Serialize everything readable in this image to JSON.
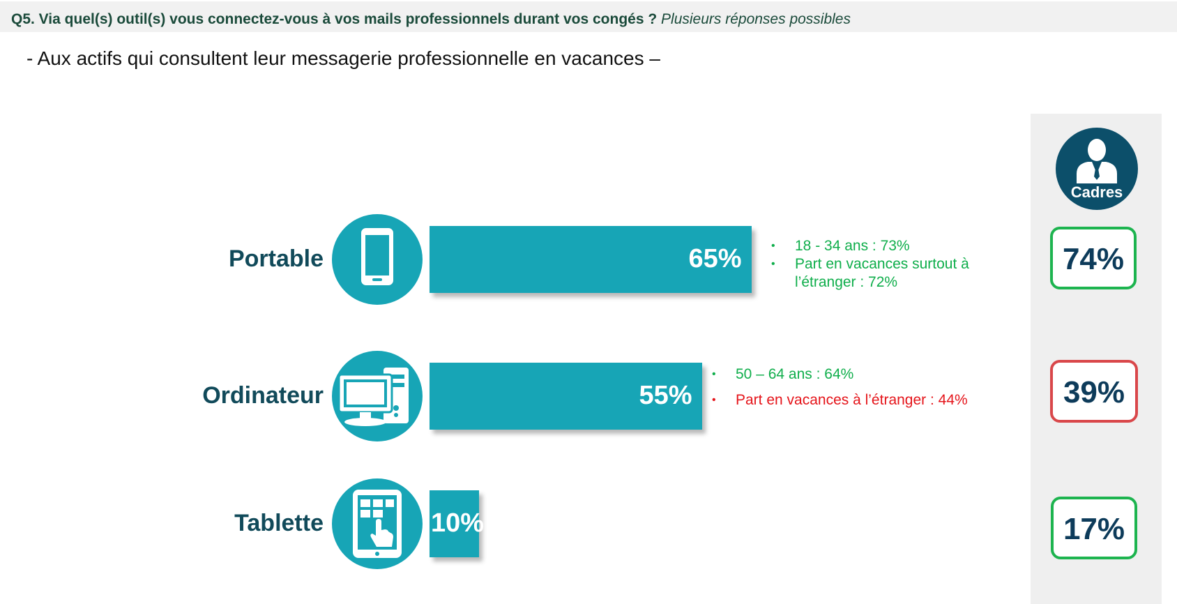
{
  "header": {
    "question": "Q5. Via quel(s) outil(s) vous connectez-vous à vos mails professionnels durant vos congés ?",
    "question_note": "Plusieurs réponses possibles",
    "subtitle": "- Aux actifs qui consultent leur messagerie professionnelle en vacances –"
  },
  "panel": {
    "title": "Cadres",
    "icon": "business-person-icon"
  },
  "colors": {
    "bar": "#17a5b6",
    "label": "#114a5a",
    "positive": "#0fae4b",
    "negative": "#e5141a",
    "cadres_circle": "#0c4f6a"
  },
  "chart_data": {
    "type": "bar",
    "orientation": "horizontal",
    "categories": [
      "Portable",
      "Ordinateur",
      "Tablette"
    ],
    "values": [
      65,
      55,
      10
    ],
    "value_labels": [
      "65%",
      "55%",
      "10%"
    ],
    "icons": [
      "smartphone-icon",
      "desktop-computer-icon",
      "tablet-icon"
    ],
    "cadres_values": [
      "74%",
      "39%",
      "17%"
    ],
    "cadres_status": [
      "higher",
      "lower",
      "higher"
    ],
    "annotations": [
      [
        {
          "text": "18 - 34 ans : 73%",
          "color": "green"
        },
        {
          "text": "Part en vacances surtout à l’étranger : 72%",
          "color": "green"
        }
      ],
      [
        {
          "text": "50 – 64 ans : 64%",
          "color": "green"
        },
        {
          "text": "Part en vacances à l’étranger : 44%",
          "color": "red"
        }
      ],
      []
    ]
  }
}
